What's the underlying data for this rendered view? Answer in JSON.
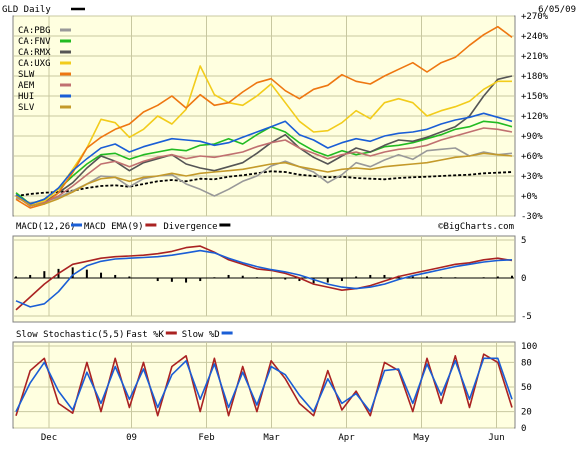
{
  "header": {
    "title": "GLD Daily",
    "date": "6/05/09",
    "credit": "©BigCharts.com"
  },
  "colors": {
    "gld": "#000000",
    "pbg": "#999999",
    "fnv": "#22bb22",
    "rmx": "#555555",
    "uxg": "#f2cc1b",
    "slw": "#ee7711",
    "aem": "#c07070",
    "hui": "#1a5ed6",
    "slv": "#c49a2a",
    "macd": "#1a5ed6",
    "macd_ema": "#aa2222",
    "divergence": "#000000",
    "stoch_k": "#aa2222",
    "stoch_d": "#1a5ed6"
  },
  "x_axis": {
    "labels": [
      "Dec",
      "09",
      "Feb",
      "Mar",
      "Apr",
      "May",
      "Jun"
    ]
  },
  "chart_data": [
    {
      "type": "line",
      "panel": "price",
      "y_unit": "% change",
      "ylim": [
        -30,
        270
      ],
      "y_ticks": [
        "+270%",
        "+240%",
        "+210%",
        "+180%",
        "+150%",
        "+120%",
        "+90%",
        "+60%",
        "+30%",
        "+0%",
        "-30%"
      ],
      "grid": true,
      "legend_position": "top-left",
      "series": [
        {
          "name": "GLD Daily",
          "style": "dashed",
          "values": [
            0,
            3,
            5,
            6,
            8,
            12,
            15,
            16,
            14,
            18,
            22,
            24,
            22,
            26,
            25,
            29,
            31,
            34,
            37,
            36,
            32,
            30,
            28,
            29,
            27,
            26,
            25,
            27,
            28,
            29,
            30,
            31,
            32,
            34,
            35,
            36
          ]
        },
        {
          "name": "CA:PBG",
          "values": [
            -3,
            -10,
            -8,
            -2,
            8,
            18,
            30,
            28,
            14,
            26,
            30,
            32,
            18,
            10,
            0,
            10,
            22,
            30,
            45,
            52,
            44,
            36,
            20,
            32,
            50,
            44,
            54,
            62,
            55,
            68,
            70,
            72,
            60,
            66,
            62,
            64
          ]
        },
        {
          "name": "CA:FNV",
          "values": [
            5,
            -12,
            -5,
            10,
            30,
            48,
            62,
            64,
            55,
            62,
            66,
            70,
            68,
            76,
            78,
            86,
            78,
            92,
            104,
            96,
            80,
            68,
            60,
            68,
            62,
            66,
            74,
            76,
            80,
            86,
            92,
            100,
            104,
            112,
            110,
            104
          ]
        },
        {
          "name": "CA:RMX",
          "values": [
            2,
            -15,
            -10,
            5,
            20,
            42,
            60,
            52,
            38,
            50,
            56,
            62,
            48,
            42,
            38,
            44,
            50,
            64,
            80,
            92,
            72,
            58,
            48,
            60,
            72,
            66,
            76,
            84,
            82,
            88,
            96,
            104,
            120,
            150,
            175,
            180
          ]
        },
        {
          "name": "CA:UXG",
          "values": [
            0,
            -12,
            -8,
            10,
            40,
            72,
            115,
            110,
            88,
            100,
            120,
            108,
            130,
            195,
            152,
            140,
            136,
            150,
            168,
            140,
            112,
            96,
            98,
            110,
            128,
            116,
            140,
            146,
            140,
            120,
            128,
            134,
            142,
            160,
            172,
            172
          ]
        },
        {
          "name": "SLW",
          "values": [
            -5,
            -18,
            -12,
            5,
            35,
            72,
            88,
            100,
            108,
            126,
            136,
            150,
            132,
            152,
            136,
            140,
            156,
            170,
            176,
            158,
            146,
            160,
            166,
            182,
            172,
            168,
            180,
            190,
            200,
            186,
            200,
            208,
            226,
            242,
            254,
            238
          ]
        },
        {
          "name": "AEM",
          "values": [
            0,
            -15,
            -10,
            0,
            15,
            32,
            48,
            52,
            44,
            52,
            58,
            62,
            56,
            60,
            58,
            62,
            66,
            74,
            80,
            84,
            72,
            64,
            56,
            62,
            66,
            60,
            66,
            70,
            72,
            76,
            84,
            90,
            96,
            102,
            100,
            96
          ]
        },
        {
          "name": "HUI",
          "values": [
            2,
            -12,
            -5,
            12,
            38,
            56,
            72,
            78,
            66,
            74,
            80,
            86,
            84,
            82,
            76,
            80,
            88,
            96,
            104,
            112,
            92,
            84,
            72,
            80,
            86,
            82,
            90,
            94,
            96,
            100,
            108,
            114,
            118,
            124,
            118,
            112
          ]
        },
        {
          "name": "SLV",
          "values": [
            0,
            -14,
            -12,
            -4,
            6,
            18,
            26,
            28,
            22,
            28,
            30,
            34,
            30,
            34,
            36,
            38,
            40,
            44,
            48,
            50,
            44,
            40,
            36,
            40,
            42,
            40,
            44,
            46,
            48,
            50,
            54,
            58,
            60,
            64,
            62,
            60
          ]
        }
      ]
    },
    {
      "type": "line",
      "panel": "macd",
      "title": "MACD(12,26)",
      "ylim": [
        -5,
        5
      ],
      "y_ticks": [
        "5",
        "0",
        "-5"
      ],
      "grid": true,
      "legend_position": "top-left",
      "series": [
        {
          "name": "MACD EMA(9)",
          "values": [
            -4.2,
            -2.5,
            -0.8,
            0.6,
            1.8,
            2.2,
            2.6,
            2.8,
            2.9,
            3.0,
            3.2,
            3.5,
            4.0,
            4.2,
            3.4,
            2.4,
            1.8,
            1.2,
            1.0,
            0.6,
            0.0,
            -0.8,
            -1.2,
            -1.6,
            -1.4,
            -1.0,
            -0.4,
            0.2,
            0.6,
            1.0,
            1.4,
            1.8,
            2.0,
            2.4,
            2.6,
            2.3
          ]
        },
        {
          "name": "MACD",
          "values": [
            -3.0,
            -3.8,
            -3.4,
            -1.8,
            0.4,
            1.6,
            2.2,
            2.5,
            2.6,
            2.7,
            2.8,
            3.0,
            3.3,
            3.6,
            3.3,
            2.6,
            2.0,
            1.5,
            1.1,
            0.8,
            0.4,
            -0.2,
            -0.8,
            -1.2,
            -1.4,
            -1.2,
            -0.8,
            -0.2,
            0.3,
            0.7,
            1.1,
            1.5,
            1.8,
            2.1,
            2.3,
            2.4
          ]
        },
        {
          "name": "Divergence",
          "style": "histogram",
          "values": [
            0.2,
            0.4,
            0.9,
            1.2,
            1.4,
            1.1,
            0.7,
            0.4,
            0.2,
            0.0,
            -0.4,
            -0.5,
            -0.6,
            -0.4,
            0.1,
            0.4,
            0.3,
            0.1,
            -0.1,
            -0.2,
            -0.4,
            -0.7,
            -0.6,
            -0.4,
            0.2,
            0.4,
            0.4,
            0.3,
            0.2,
            0.2,
            0.1,
            0.1,
            0.0,
            0.1,
            0.2,
            0.3
          ]
        }
      ]
    },
    {
      "type": "line",
      "panel": "stochastic",
      "title": "Slow Stochastic(5,5)",
      "ylim": [
        0,
        100
      ],
      "y_ticks": [
        "100",
        "80",
        "50",
        "20",
        "0"
      ],
      "grid": true,
      "legend_position": "top-left",
      "series": [
        {
          "name": "Fast %K",
          "values": [
            15,
            70,
            85,
            30,
            18,
            80,
            20,
            85,
            25,
            80,
            15,
            75,
            88,
            20,
            85,
            15,
            75,
            20,
            82,
            60,
            30,
            15,
            70,
            22,
            45,
            15,
            80,
            70,
            20,
            85,
            30,
            88,
            25,
            90,
            80,
            25
          ]
        },
        {
          "name": "Slow %D",
          "values": [
            20,
            55,
            80,
            45,
            22,
            68,
            30,
            75,
            35,
            72,
            25,
            65,
            82,
            35,
            78,
            25,
            68,
            28,
            75,
            65,
            40,
            20,
            60,
            30,
            42,
            20,
            70,
            72,
            30,
            78,
            40,
            82,
            35,
            85,
            85,
            35
          ]
        }
      ]
    }
  ]
}
